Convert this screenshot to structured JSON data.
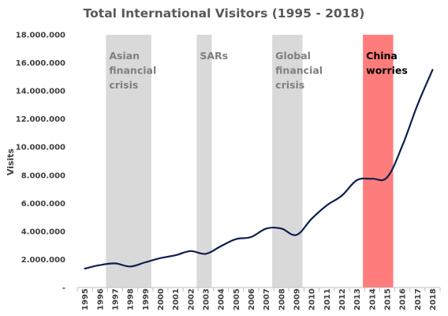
{
  "chart_data": {
    "type": "line",
    "title": "Total International Visitors (1995 - 2018)",
    "xlabel": "",
    "ylabel": "Visits",
    "ylim": [
      0,
      18000000
    ],
    "yticks": [
      {
        "value": 0,
        "label": "-"
      },
      {
        "value": 2000000,
        "label": "2.000.000"
      },
      {
        "value": 4000000,
        "label": "4.000.000"
      },
      {
        "value": 6000000,
        "label": "6.000.000"
      },
      {
        "value": 8000000,
        "label": "8.000.000"
      },
      {
        "value": 10000000,
        "label": "10.000.000"
      },
      {
        "value": 12000000,
        "label": "12.000.000"
      },
      {
        "value": 14000000,
        "label": "14.000.000"
      },
      {
        "value": 16000000,
        "label": "16.000.000"
      },
      {
        "value": 18000000,
        "label": "18.000.000"
      }
    ],
    "x": [
      "1995",
      "1996",
      "1997",
      "1998",
      "1999",
      "2000",
      "2001",
      "2002",
      "2003",
      "2004",
      "2005",
      "2006",
      "2007",
      "2008",
      "2009",
      "2010",
      "2011",
      "2012",
      "2013",
      "2014",
      "2015",
      "2016",
      "2017",
      "2018"
    ],
    "series": [
      {
        "color": "#0d1f4f",
        "values": [
          1350000,
          1600000,
          1720000,
          1500000,
          1800000,
          2100000,
          2300000,
          2600000,
          2400000,
          2950000,
          3450000,
          3600000,
          4200000,
          4200000,
          3750000,
          4900000,
          5850000,
          6550000,
          7650000,
          7750000,
          7850000,
          10100000,
          13000000,
          15500000
        ]
      }
    ],
    "bands": [
      {
        "label_lines": [
          "Asian",
          "financial",
          "crisis"
        ],
        "from": "1997",
        "to": "1999",
        "color": "#d9d9d9",
        "text_color": "#7f7f7f"
      },
      {
        "label_lines": [
          "SARs"
        ],
        "from": "2003",
        "to": "2003",
        "color": "#d9d9d9",
        "text_color": "#7f7f7f"
      },
      {
        "label_lines": [
          "Global",
          "financial",
          "crisis"
        ],
        "from": "2008",
        "to": "2009",
        "color": "#d9d9d9",
        "text_color": "#7f7f7f"
      },
      {
        "label_lines": [
          "China",
          "worries"
        ],
        "from": "2014",
        "to": "2015",
        "color": "#ff7c7c",
        "text_color": "#000000"
      }
    ],
    "grid": false,
    "legend": "none"
  }
}
